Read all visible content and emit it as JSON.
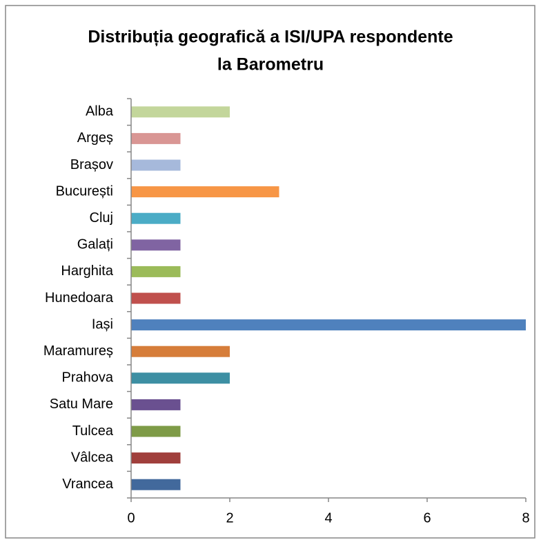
{
  "chart_data": {
    "type": "bar",
    "orientation": "horizontal",
    "title": [
      "Distribuția geografică a ISI/UPA respondente",
      "la Barometru"
    ],
    "categories": [
      "Alba",
      "Argeș",
      "Brașov",
      "București",
      "Cluj",
      "Galați",
      "Harghita",
      "Hunedoara",
      "Iași",
      "Maramureș",
      "Prahova",
      "Satu Mare",
      "Tulcea",
      "Vâlcea",
      "Vrancea"
    ],
    "values": [
      2,
      1,
      1,
      3,
      1,
      1,
      1,
      1,
      8,
      2,
      2,
      1,
      1,
      1,
      1
    ],
    "colors": [
      "#c3d69b",
      "#d99694",
      "#a6b9db",
      "#f79646",
      "#4bacc6",
      "#8064a2",
      "#9bbb59",
      "#c0504d",
      "#4f81bd",
      "#d67d3a",
      "#3d8fa3",
      "#6a5090",
      "#7e9b47",
      "#a03f3c",
      "#42699c"
    ],
    "xlim": [
      0,
      8
    ],
    "xticks": [
      0,
      2,
      4,
      6,
      8
    ],
    "grid": false
  }
}
